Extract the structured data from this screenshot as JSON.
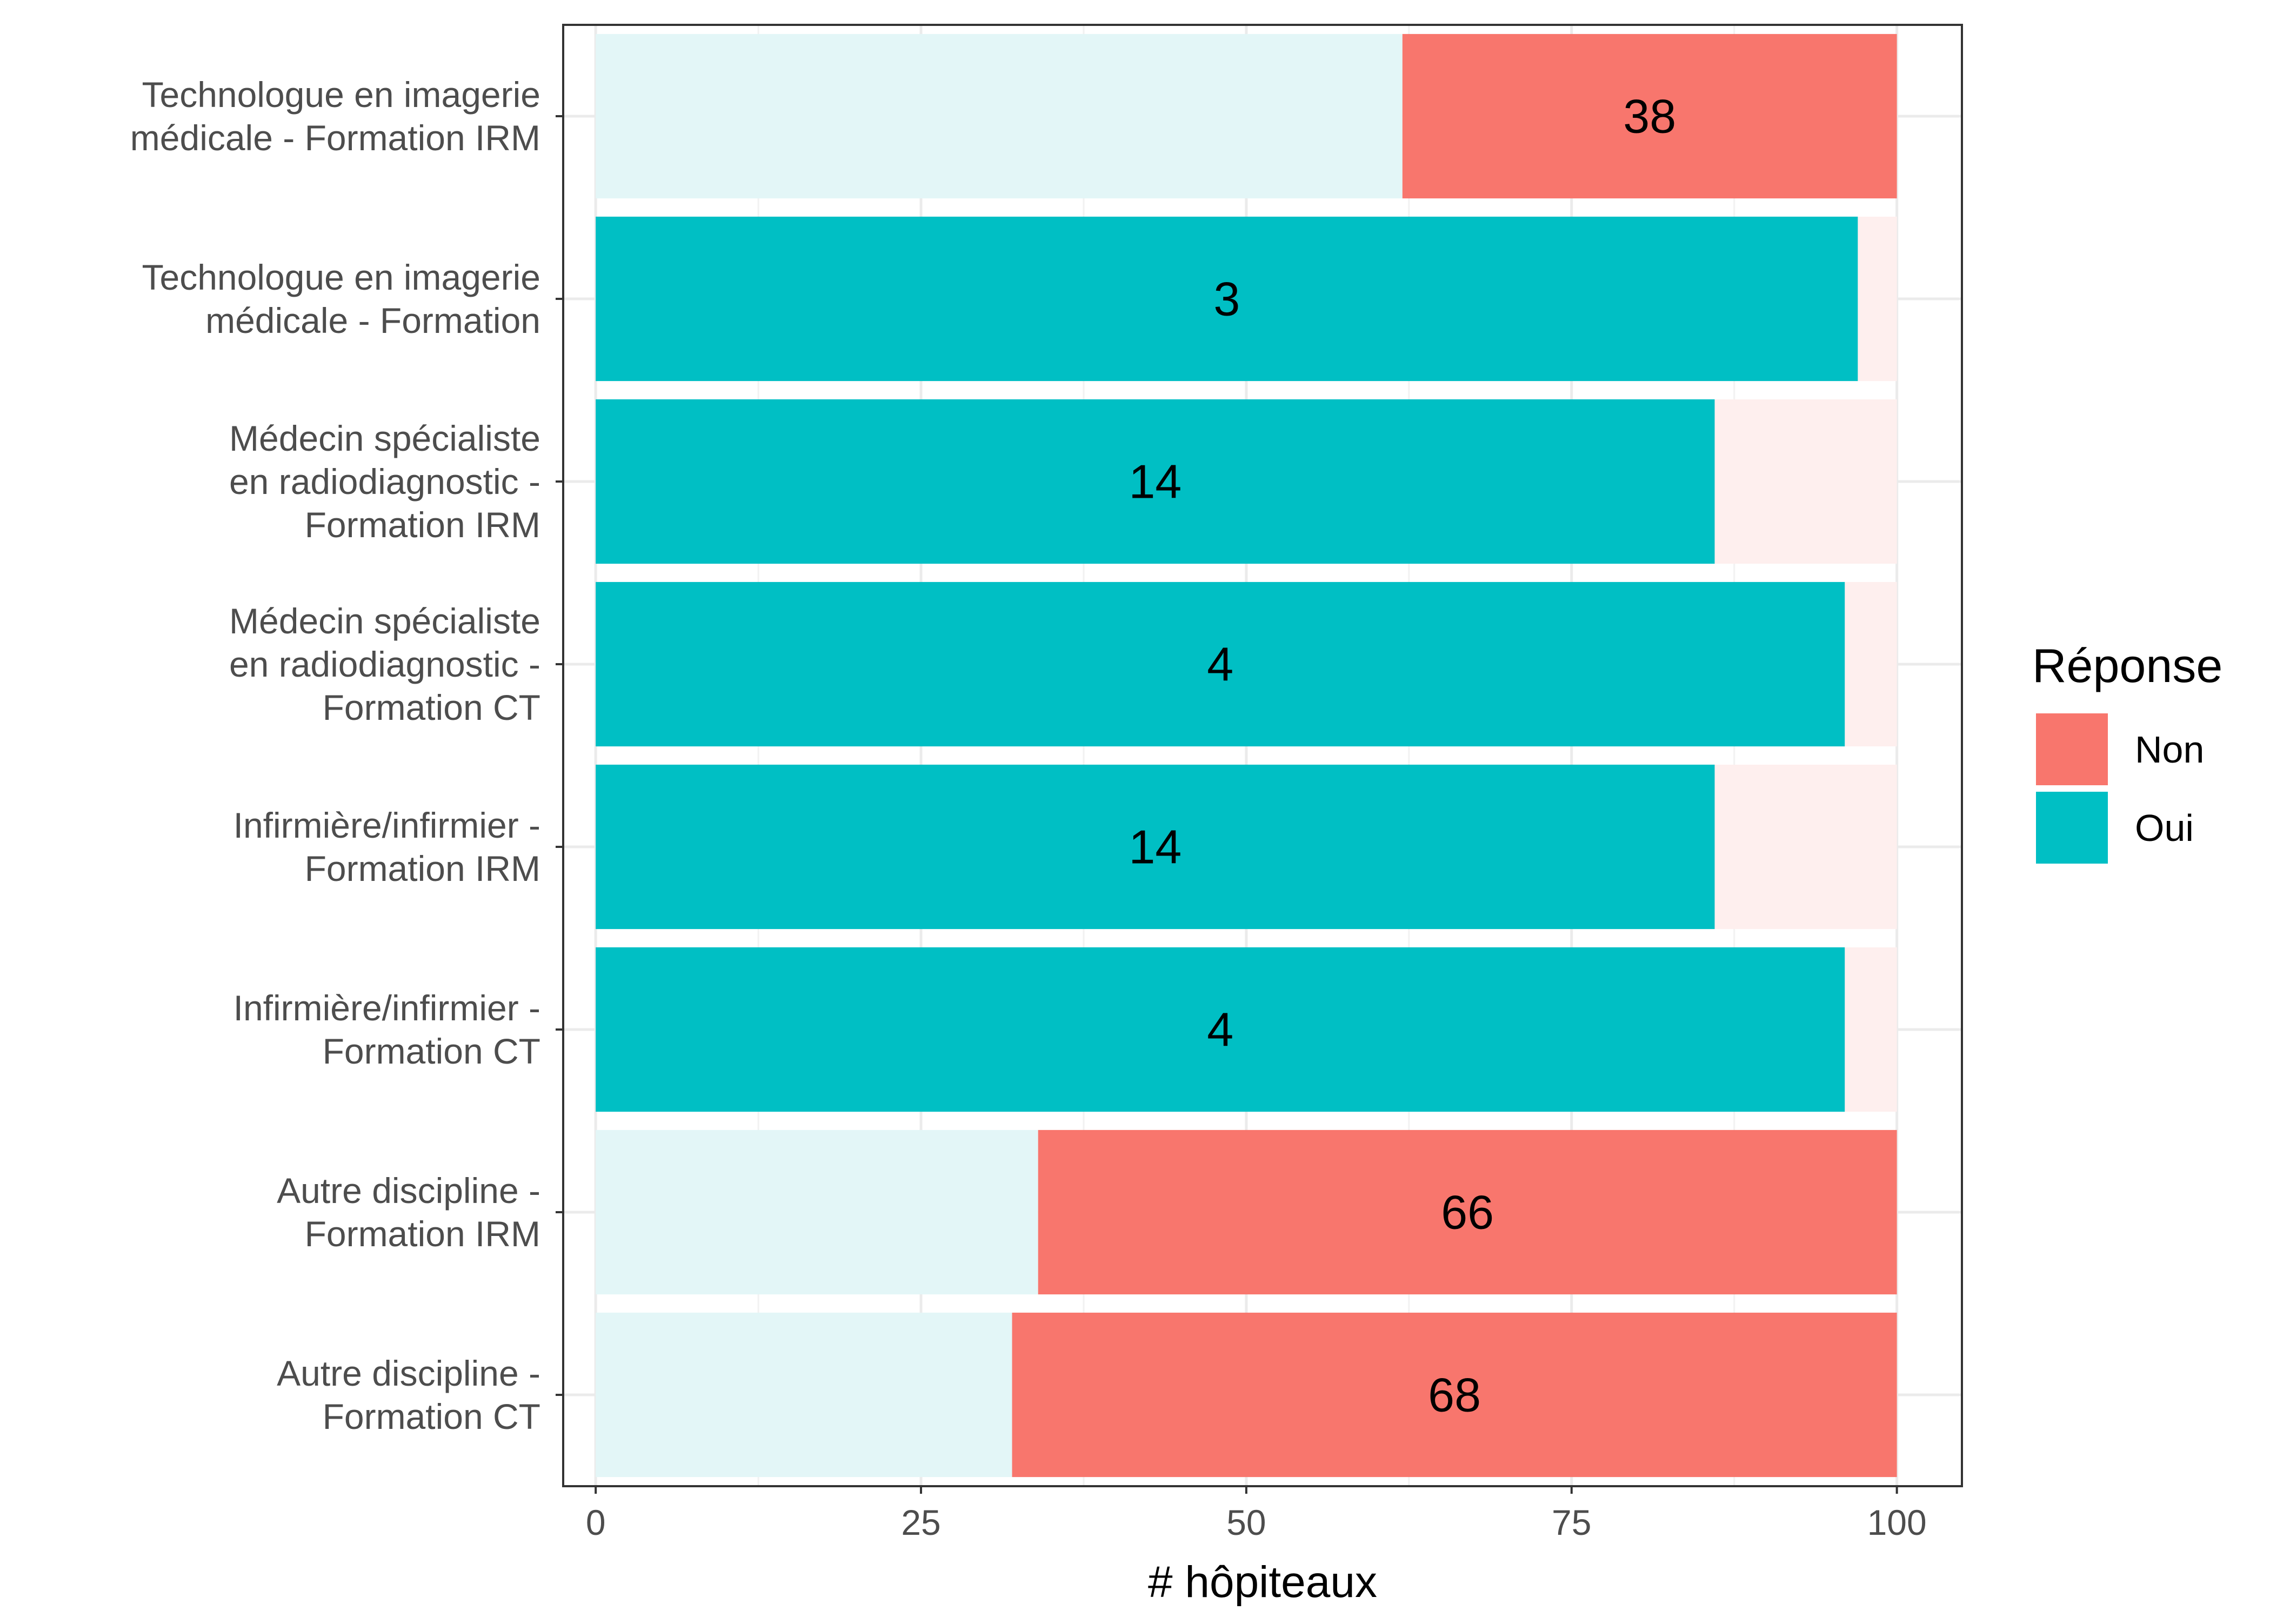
{
  "chart_data": {
    "type": "bar",
    "orientation": "horizontal",
    "stacked": true,
    "categories": [
      [
        "Technologue en imagerie",
        "médicale - Formation IRM"
      ],
      [
        "Technologue en imagerie",
        "médicale - Formation"
      ],
      [
        "Médecin spécialiste",
        "en radiodiagnostic -",
        "Formation IRM"
      ],
      [
        "Médecin spécialiste",
        "en radiodiagnostic -",
        "Formation CT"
      ],
      [
        "Infirmière/infirmier -",
        "Formation IRM"
      ],
      [
        "Infirmière/infirmier -",
        "Formation CT"
      ],
      [
        "Autre discipline -",
        "Formation IRM"
      ],
      [
        "Autre discipline -",
        "Formation CT"
      ]
    ],
    "series": [
      {
        "name": "Oui",
        "values": [
          62,
          97,
          86,
          96,
          86,
          96,
          34,
          32
        ]
      },
      {
        "name": "Non",
        "values": [
          38,
          3,
          14,
          4,
          14,
          4,
          66,
          68
        ]
      }
    ],
    "highlight": [
      "Non",
      "Oui",
      "Oui",
      "Oui",
      "Oui",
      "Oui",
      "Non",
      "Non"
    ],
    "labels": [
      "38",
      "3",
      "14",
      "4",
      "14",
      "4",
      "66",
      "68"
    ],
    "xlabel": "# hôpiteaux",
    "ylabel": "",
    "xlim": [
      -2.5,
      105
    ],
    "x_ticks": [
      0,
      25,
      50,
      75,
      100
    ],
    "x_tick_labels": [
      "0",
      "25",
      "50",
      "75",
      "100"
    ],
    "grid": true,
    "legend": {
      "title": "Réponse",
      "position": "right",
      "entries": [
        {
          "name": "Non",
          "color": "#F8766D"
        },
        {
          "name": "Oui",
          "color": "#00BFC4"
        }
      ]
    },
    "colors": {
      "Non": "#F8766D",
      "Oui": "#00BFC4",
      "Non_faded": "#FEEFEE",
      "Oui_faded": "#E3F6F7"
    }
  }
}
